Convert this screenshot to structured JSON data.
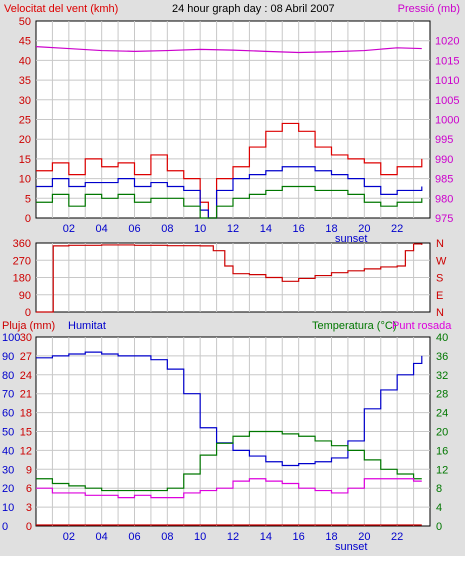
{
  "header": {
    "left_label": "Velocitat del vent (kmh)",
    "title": "24 hour graph day : 08 Abril 2007",
    "right_label": "Pressió (mb)"
  },
  "colors": {
    "wind": "#dd0000",
    "wind_avg": "#0000cc",
    "wind_min": "#007700",
    "pressure": "#cc00cc",
    "direction": "#cc0000",
    "rain": "#cc0000",
    "humidity": "#0000cc",
    "temperature": "#007700",
    "dewpoint": "#dd00dd",
    "grid": "#c8c8c8",
    "frame_bg": "#e0e0e0"
  },
  "chart_data": [
    {
      "id": "wind_pressure",
      "type": "line",
      "title": "24 hour graph day : 08 Abril 2007",
      "left_axis_label": "Velocitat del vent (kmh)",
      "right_axis_label": "Pressió (mb)",
      "xlim": [
        0,
        24
      ],
      "ylim_left": [
        0,
        50
      ],
      "ylim_right": [
        975,
        1025
      ],
      "y_ticks_left": [
        "0",
        "5",
        "10",
        "15",
        "20",
        "25",
        "30",
        "35",
        "40",
        "45",
        "50"
      ],
      "y_ticks_right": [
        "975",
        "980",
        "985",
        "990",
        "995",
        "1000",
        "1005",
        "1010",
        "1015",
        "1020"
      ],
      "x_ticks": [
        "02",
        "04",
        "06",
        "08",
        "10",
        "12",
        "14",
        "16",
        "18",
        "20",
        "22"
      ],
      "sunset_label": "sunset",
      "grid": true,
      "series": [
        {
          "key": "gust",
          "x": [
            0,
            1,
            2,
            3,
            4,
            5,
            6,
            7,
            8,
            9,
            10,
            10.5,
            11,
            12,
            13,
            14,
            15,
            16,
            17,
            18,
            19,
            20,
            21,
            22,
            23.5
          ],
          "values": [
            12,
            14,
            11,
            15,
            13,
            14,
            11,
            16,
            12,
            10,
            4,
            0,
            10,
            13,
            18,
            22,
            24,
            22,
            18,
            16,
            15,
            14,
            11,
            13,
            15
          ]
        },
        {
          "key": "avg",
          "x": [
            0,
            1,
            2,
            3,
            4,
            5,
            6,
            7,
            8,
            9,
            10,
            10.5,
            11,
            12,
            13,
            14,
            15,
            16,
            17,
            18,
            19,
            20,
            21,
            22,
            23.5
          ],
          "values": [
            8,
            10,
            8,
            9,
            9,
            10,
            8,
            9,
            8,
            7,
            2,
            0,
            7,
            10,
            11,
            12,
            13,
            13,
            12,
            11,
            10,
            8,
            6,
            7,
            8
          ]
        },
        {
          "key": "min",
          "x": [
            0,
            1,
            2,
            3,
            4,
            5,
            6,
            7,
            8,
            9,
            10,
            10.5,
            11,
            12,
            13,
            14,
            15,
            16,
            17,
            18,
            19,
            20,
            21,
            22,
            23.5
          ],
          "values": [
            4,
            6,
            3,
            6,
            5,
            6,
            4,
            5,
            5,
            3,
            0,
            0,
            3,
            5,
            6,
            7,
            8,
            8,
            7,
            7,
            6,
            4,
            3,
            4,
            5
          ]
        },
        {
          "key": "pressure",
          "axis": "right",
          "x": [
            0,
            2,
            4,
            6,
            8,
            10,
            12,
            14,
            16,
            18,
            20,
            22,
            23.5
          ],
          "values": [
            1018.5,
            1018,
            1017.5,
            1017.3,
            1017.5,
            1017.8,
            1017.6,
            1017.3,
            1017,
            1017.2,
            1017.5,
            1018.2,
            1018
          ]
        }
      ]
    },
    {
      "id": "direction",
      "type": "line",
      "xlim": [
        0,
        24
      ],
      "ylim": [
        0,
        360
      ],
      "y_ticks_left": [
        "0",
        "90",
        "180",
        "270",
        "360"
      ],
      "y_ticks_right": [
        "N",
        "S",
        "E",
        "W",
        "N"
      ],
      "grid": true,
      "series": [
        {
          "key": "direction",
          "x": [
            0,
            1,
            1.05,
            2,
            4,
            6,
            8,
            10,
            10.8,
            11.5,
            12,
            13,
            14,
            15,
            16,
            17,
            18,
            19,
            20,
            21,
            22,
            22.5,
            23,
            23.5
          ],
          "values": [
            0,
            0,
            345,
            348,
            350,
            348,
            346,
            345,
            320,
            240,
            200,
            195,
            180,
            160,
            175,
            190,
            205,
            215,
            225,
            235,
            240,
            320,
            355,
            350
          ]
        }
      ]
    },
    {
      "id": "humidity_temp",
      "type": "line",
      "left_label_1": "Pluja (mm)",
      "left_label_2": "Humitat",
      "right_label_1": "Temperatura (°C)",
      "right_label_2": "Punt rosada",
      "xlim": [
        0,
        24
      ],
      "ylim_left_humidity": [
        0,
        100
      ],
      "ylim_right_temp": [
        0,
        40
      ],
      "y_ticks_left_humidity": [
        "0",
        "10",
        "20",
        "30",
        "40",
        "50",
        "60",
        "70",
        "80",
        "90",
        "100"
      ],
      "y_ticks_left_rain": [
        "0",
        "3",
        "6",
        "9",
        "12",
        "15",
        "18",
        "21",
        "24",
        "27",
        "30"
      ],
      "y_ticks_right": [
        "0",
        "4",
        "8",
        "12",
        "16",
        "20",
        "24",
        "28",
        "32",
        "36",
        "40"
      ],
      "x_ticks": [
        "02",
        "04",
        "06",
        "08",
        "10",
        "12",
        "14",
        "16",
        "18",
        "20",
        "22"
      ],
      "sunset_label": "sunset",
      "grid": true,
      "series": [
        {
          "key": "humidity",
          "x": [
            0,
            1,
            2,
            3,
            4,
            5,
            6,
            7,
            8,
            9,
            10,
            11,
            12,
            13,
            14,
            15,
            16,
            17,
            18,
            19,
            20,
            21,
            22,
            23,
            23.5
          ],
          "values": [
            89,
            90,
            91,
            92,
            91,
            90,
            90,
            88,
            83,
            70,
            52,
            44,
            40,
            37,
            34,
            32,
            33,
            34,
            36,
            45,
            62,
            72,
            80,
            86,
            90
          ]
        },
        {
          "key": "temperature",
          "axis": "right",
          "x": [
            0,
            1,
            2,
            3,
            4,
            5,
            6,
            7,
            8,
            9,
            10,
            11,
            12,
            13,
            14,
            15,
            16,
            17,
            18,
            19,
            20,
            21,
            22,
            23,
            23.5
          ],
          "values": [
            10,
            9,
            8.5,
            8,
            7.5,
            7.5,
            7.5,
            7.5,
            8,
            11,
            15,
            17.5,
            19,
            20,
            20,
            19.5,
            19,
            18,
            17,
            16,
            14,
            12,
            11,
            10,
            10
          ]
        },
        {
          "key": "dewpoint",
          "axis": "right",
          "x": [
            0,
            1,
            2,
            3,
            4,
            5,
            6,
            7,
            8,
            9,
            10,
            11,
            12,
            13,
            14,
            15,
            16,
            17,
            18,
            19,
            20,
            21,
            22,
            23,
            23.5
          ],
          "values": [
            8,
            7,
            7,
            6.5,
            6.5,
            6,
            6.5,
            6,
            6,
            7,
            7.5,
            8,
            9.5,
            10,
            9.5,
            9,
            8,
            7.5,
            7,
            8,
            10,
            10,
            10,
            9.5,
            9.5
          ]
        },
        {
          "key": "rain",
          "x": [
            0,
            23.5
          ],
          "values": [
            0,
            0
          ]
        }
      ]
    }
  ]
}
